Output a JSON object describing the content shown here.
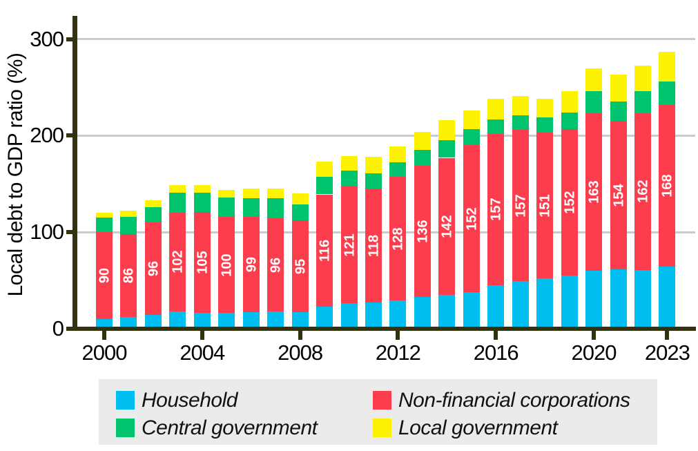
{
  "chart": {
    "y_axis_title": "Local debt to GDP ratio (%)",
    "y_tick_labels": [
      "0",
      "100",
      "200",
      "300"
    ],
    "y_tick_values": [
      0,
      100,
      200,
      300
    ],
    "x_tick_labels": [
      "2000",
      "2004",
      "2008",
      "2012",
      "2016",
      "2020",
      "2023"
    ],
    "x_tick_years": [
      2000,
      2004,
      2008,
      2012,
      2016,
      2020,
      2023
    ]
  },
  "legend": {
    "items": [
      {
        "label": "Household",
        "color_key": "household"
      },
      {
        "label": "Non-financial corporations",
        "color_key": "nfc"
      },
      {
        "label": "Central government",
        "color_key": "central_gov"
      },
      {
        "label": "Local government",
        "color_key": "local_gov"
      }
    ]
  },
  "colors": {
    "household": "#00bff0",
    "nfc": "#fc3d4d",
    "central_gov": "#00c46d",
    "local_gov": "#fcf201",
    "axis": "#32320e",
    "gridline": "#cbcbcb",
    "legend_bg": "#ebebeb",
    "bar_label": "#ffffff"
  },
  "chart_data": {
    "type": "bar",
    "stacked": true,
    "ylabel": "Local debt to GDP ratio (%)",
    "ylim": [
      0,
      310
    ],
    "grid": "horizontal-at-100-200-300",
    "legend_position": "bottom",
    "categories": [
      2000,
      2001,
      2002,
      2003,
      2004,
      2005,
      2006,
      2007,
      2008,
      2009,
      2010,
      2011,
      2012,
      2013,
      2014,
      2015,
      2016,
      2017,
      2018,
      2019,
      2020,
      2021,
      2022,
      2023
    ],
    "series": [
      {
        "name": "Household",
        "color_key": "household",
        "values": [
          10,
          12,
          14,
          18,
          16,
          16,
          17,
          18,
          17,
          23,
          26,
          27,
          29,
          33,
          35,
          38,
          45,
          49,
          52,
          55,
          60,
          61,
          61,
          64
        ]
      },
      {
        "name": "Non-financial corporations",
        "color_key": "nfc",
        "segment_labels_shown": true,
        "values": [
          90,
          86,
          96,
          102,
          105,
          100,
          99,
          96,
          95,
          116,
          121,
          118,
          128,
          136,
          142,
          152,
          157,
          157,
          151,
          152,
          163,
          154,
          162,
          168
        ]
      },
      {
        "name": "Central government",
        "color_key": "central_gov",
        "values": [
          15,
          18,
          16,
          21,
          20,
          20,
          19,
          21,
          17,
          18,
          17,
          16,
          15,
          16,
          18,
          17,
          15,
          15,
          16,
          17,
          23,
          20,
          23,
          24
        ]
      },
      {
        "name": "Local government",
        "color_key": "local_gov",
        "values": [
          5,
          6,
          7,
          8,
          8,
          8,
          10,
          10,
          11,
          16,
          15,
          17,
          17,
          19,
          21,
          19,
          21,
          20,
          19,
          22,
          24,
          28,
          27,
          31
        ]
      }
    ],
    "bar_value_labels": "white rotated labels on Non-financial corporations segments",
    "bar_label_values": [
      90,
      86,
      96,
      102,
      105,
      100,
      99,
      96,
      95,
      116,
      121,
      118,
      128,
      136,
      142,
      152,
      157,
      157,
      151,
      152,
      163,
      154,
      162,
      168
    ]
  }
}
